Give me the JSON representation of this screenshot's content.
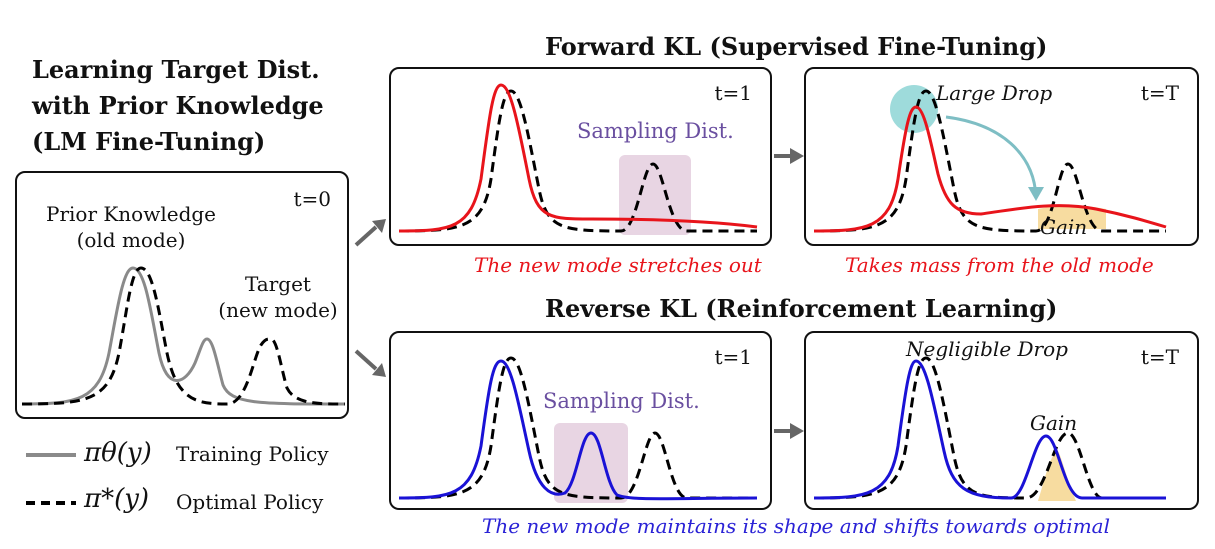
{
  "main_title": {
    "line1": "Learning Target Dist.",
    "line2": "with Prior Knowledge",
    "line3": "(LM Fine-Tuning)"
  },
  "forward_title": "Forward KL (Supervised Fine-Tuning)",
  "reverse_title": "Reverse KL (Reinforcement Learning)",
  "initial_panel": {
    "time": "t=0",
    "prior_line1": "Prior Knowledge",
    "prior_line2": "(old mode)",
    "target_line1": "Target",
    "target_line2": "(new mode)"
  },
  "forward_t1": {
    "time": "t=1",
    "sampling": "Sampling Dist."
  },
  "forward_tT": {
    "time": "t=T",
    "large_drop": "Large Drop",
    "gain": "Gain"
  },
  "reverse_t1": {
    "time": "t=1",
    "sampling": "Sampling Dist."
  },
  "reverse_tT": {
    "time": "t=T",
    "negligible_drop": "Negligible Drop",
    "gain": "Gain"
  },
  "captions": {
    "forward_left": "The new mode stretches out",
    "forward_right": "Takes mass from the old mode",
    "reverse": "The new mode maintains its shape and shifts towards optimal"
  },
  "legend": {
    "training_symbol": "πθ(y)",
    "training_label": "Training Policy",
    "optimal_symbol": "π*(y)",
    "optimal_label": "Optimal Policy"
  },
  "colors": {
    "training_gray": "#8a8a8a",
    "forward_red": "#e8141b",
    "reverse_blue": "#1a12d6",
    "sampling_box": "#e8d5e3",
    "gain_fill": "#f6d896",
    "drop_circle": "#7ecfcf",
    "arrow_gray": "#666666"
  }
}
